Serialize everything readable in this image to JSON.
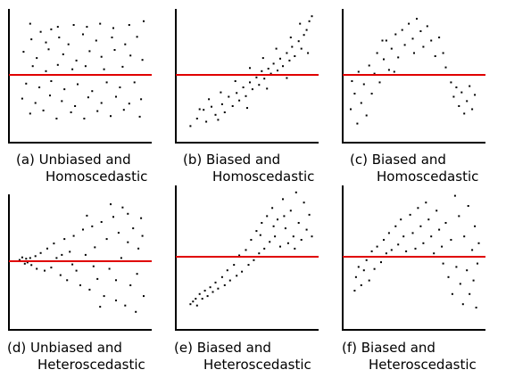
{
  "colors": {
    "dots": "#000000",
    "axes": "#000000",
    "reference_line": "#e00000",
    "background": "#ffffff"
  },
  "chart_data": [
    {
      "type": "scatter",
      "caption_line1": "(a) Unbiased and",
      "caption_line2": "Homoscedastic",
      "xlim": [
        0,
        1
      ],
      "ylim": [
        -1,
        1
      ],
      "reference_line_y": 0,
      "axes": "left-bottom",
      "grid": false,
      "ticks": false,
      "points": [
        [
          0.12,
          0.82
        ],
        [
          0.2,
          0.69
        ],
        [
          0.28,
          0.73
        ],
        [
          0.33,
          0.77
        ],
        [
          0.45,
          0.8
        ],
        [
          0.55,
          0.77
        ],
        [
          0.65,
          0.82
        ],
        [
          0.75,
          0.75
        ],
        [
          0.87,
          0.8
        ],
        [
          0.98,
          0.86
        ],
        [
          0.13,
          0.57
        ],
        [
          0.24,
          0.52
        ],
        [
          0.34,
          0.6
        ],
        [
          0.41,
          0.49
        ],
        [
          0.52,
          0.65
        ],
        [
          0.62,
          0.55
        ],
        [
          0.74,
          0.6
        ],
        [
          0.84,
          0.49
        ],
        [
          0.93,
          0.61
        ],
        [
          0.07,
          0.37
        ],
        [
          0.17,
          0.27
        ],
        [
          0.26,
          0.41
        ],
        [
          0.37,
          0.33
        ],
        [
          0.47,
          0.23
        ],
        [
          0.57,
          0.38
        ],
        [
          0.66,
          0.29
        ],
        [
          0.76,
          0.4
        ],
        [
          0.88,
          0.31
        ],
        [
          0.97,
          0.24
        ],
        [
          0.14,
          0.14
        ],
        [
          0.24,
          0.06
        ],
        [
          0.33,
          0.16
        ],
        [
          0.44,
          0.09
        ],
        [
          0.54,
          0.14
        ],
        [
          0.68,
          0.09
        ],
        [
          0.82,
          0.13
        ],
        [
          0.09,
          -0.14
        ],
        [
          0.19,
          -0.2
        ],
        [
          0.28,
          -0.1
        ],
        [
          0.38,
          -0.23
        ],
        [
          0.48,
          -0.15
        ],
        [
          0.59,
          -0.26
        ],
        [
          0.7,
          -0.12
        ],
        [
          0.8,
          -0.2
        ],
        [
          0.91,
          -0.12
        ],
        [
          0.06,
          -0.38
        ],
        [
          0.16,
          -0.45
        ],
        [
          0.27,
          -0.33
        ],
        [
          0.36,
          -0.42
        ],
        [
          0.46,
          -0.5
        ],
        [
          0.56,
          -0.36
        ],
        [
          0.66,
          -0.45
        ],
        [
          0.77,
          -0.35
        ],
        [
          0.87,
          -0.46
        ],
        [
          0.96,
          -0.39
        ],
        [
          0.12,
          -0.62
        ],
        [
          0.22,
          -0.57
        ],
        [
          0.32,
          -0.7
        ],
        [
          0.43,
          -0.6
        ],
        [
          0.53,
          -0.7
        ],
        [
          0.63,
          -0.58
        ],
        [
          0.73,
          -0.66
        ],
        [
          0.83,
          -0.56
        ],
        [
          0.95,
          -0.67
        ]
      ]
    },
    {
      "type": "scatter",
      "caption_line1": "(b) Biased and",
      "caption_line2": "Homoscedastic",
      "xlim": [
        0,
        1
      ],
      "ylim": [
        -1,
        1
      ],
      "reference_line_y": 0,
      "axes": "left-bottom",
      "grid": false,
      "ticks": false,
      "points": [
        [
          0.07,
          -0.82
        ],
        [
          0.12,
          -0.7
        ],
        [
          0.19,
          -0.75
        ],
        [
          0.17,
          -0.56
        ],
        [
          0.23,
          -0.51
        ],
        [
          0.26,
          -0.64
        ],
        [
          0.31,
          -0.47
        ],
        [
          0.33,
          -0.6
        ],
        [
          0.36,
          -0.35
        ],
        [
          0.39,
          -0.5
        ],
        [
          0.42,
          -0.29
        ],
        [
          0.44,
          -0.41
        ],
        [
          0.47,
          -0.2
        ],
        [
          0.49,
          -0.34
        ],
        [
          0.52,
          -0.12
        ],
        [
          0.54,
          -0.23
        ],
        [
          0.57,
          -0.04
        ],
        [
          0.59,
          -0.16
        ],
        [
          0.61,
          0.06
        ],
        [
          0.63,
          -0.06
        ],
        [
          0.66,
          0.1
        ],
        [
          0.68,
          0.02
        ],
        [
          0.7,
          0.18
        ],
        [
          0.73,
          0.07
        ],
        [
          0.75,
          0.26
        ],
        [
          0.77,
          0.14
        ],
        [
          0.8,
          0.35
        ],
        [
          0.82,
          0.23
        ],
        [
          0.84,
          0.45
        ],
        [
          0.86,
          0.3
        ],
        [
          0.89,
          0.54
        ],
        [
          0.91,
          0.42
        ],
        [
          0.93,
          0.64
        ],
        [
          0.95,
          0.72
        ],
        [
          0.97,
          0.86
        ],
        [
          0.99,
          0.94
        ],
        [
          0.9,
          0.82
        ],
        [
          0.83,
          0.6
        ],
        [
          0.72,
          0.42
        ],
        [
          0.62,
          0.27
        ],
        [
          0.52,
          0.11
        ],
        [
          0.41,
          -0.1
        ],
        [
          0.3,
          -0.28
        ],
        [
          0.21,
          -0.39
        ],
        [
          0.14,
          -0.55
        ],
        [
          0.28,
          -0.72
        ],
        [
          0.5,
          -0.53
        ],
        [
          0.65,
          -0.22
        ],
        [
          0.8,
          -0.05
        ],
        [
          0.96,
          0.35
        ]
      ]
    },
    {
      "type": "scatter",
      "caption_line1": "(c) Biased and",
      "caption_line2": "Homoscedastic",
      "xlim": [
        0,
        1
      ],
      "ylim": [
        -1,
        1
      ],
      "reference_line_y": 0,
      "axes": "left-bottom",
      "grid": false,
      "ticks": false,
      "points": [
        [
          0.02,
          -0.55
        ],
        [
          0.05,
          -0.3
        ],
        [
          0.07,
          -0.78
        ],
        [
          0.1,
          -0.45
        ],
        [
          0.12,
          -0.15
        ],
        [
          0.14,
          -0.65
        ],
        [
          0.16,
          0.15
        ],
        [
          0.18,
          -0.3
        ],
        [
          0.2,
          0.02
        ],
        [
          0.22,
          0.35
        ],
        [
          0.24,
          -0.12
        ],
        [
          0.27,
          0.25
        ],
        [
          0.29,
          0.55
        ],
        [
          0.31,
          0.08
        ],
        [
          0.33,
          0.42
        ],
        [
          0.36,
          0.65
        ],
        [
          0.38,
          0.28
        ],
        [
          0.41,
          0.72
        ],
        [
          0.43,
          0.48
        ],
        [
          0.46,
          0.82
        ],
        [
          0.49,
          0.58
        ],
        [
          0.52,
          0.9
        ],
        [
          0.55,
          0.7
        ],
        [
          0.57,
          0.45
        ],
        [
          0.6,
          0.78
        ],
        [
          0.63,
          0.55
        ],
        [
          0.66,
          0.3
        ],
        [
          0.69,
          0.6
        ],
        [
          0.72,
          0.35
        ],
        [
          0.74,
          0.12
        ],
        [
          0.03,
          -0.1
        ],
        [
          0.08,
          0.05
        ],
        [
          0.26,
          0.55
        ],
        [
          0.35,
          0.05
        ],
        [
          0.5,
          0.35
        ],
        [
          0.78,
          -0.12
        ],
        [
          0.8,
          -0.35
        ],
        [
          0.82,
          -0.2
        ],
        [
          0.84,
          -0.5
        ],
        [
          0.86,
          -0.28
        ],
        [
          0.88,
          -0.62
        ],
        [
          0.9,
          -0.42
        ],
        [
          0.92,
          -0.18
        ],
        [
          0.94,
          -0.55
        ],
        [
          0.96,
          -0.32
        ]
      ]
    },
    {
      "type": "scatter",
      "caption_line1": "(d) Unbiased and",
      "caption_line2": "Heteroscedastic",
      "xlim": [
        0,
        1
      ],
      "ylim": [
        -1,
        1
      ],
      "reference_line_y": 0,
      "axes": "left-bottom",
      "grid": false,
      "ticks": false,
      "points": [
        [
          0.04,
          0.02
        ],
        [
          0.06,
          0.06
        ],
        [
          0.08,
          -0.04
        ],
        [
          0.09,
          0.04
        ],
        [
          0.1,
          -0.02
        ],
        [
          0.12,
          0.05
        ],
        [
          0.13,
          -0.06
        ],
        [
          0.16,
          0.08
        ],
        [
          0.17,
          -0.12
        ],
        [
          0.2,
          0.13
        ],
        [
          0.23,
          -0.15
        ],
        [
          0.25,
          0.2
        ],
        [
          0.28,
          -0.1
        ],
        [
          0.3,
          0.28
        ],
        [
          0.32,
          0.05
        ],
        [
          0.35,
          -0.22
        ],
        [
          0.38,
          0.35
        ],
        [
          0.4,
          -0.3
        ],
        [
          0.42,
          0.15
        ],
        [
          0.45,
          0.4
        ],
        [
          0.47,
          -0.15
        ],
        [
          0.5,
          -0.38
        ],
        [
          0.52,
          0.5
        ],
        [
          0.54,
          0.1
        ],
        [
          0.57,
          -0.45
        ],
        [
          0.59,
          0.55
        ],
        [
          0.61,
          0.22
        ],
        [
          0.63,
          -0.28
        ],
        [
          0.66,
          0.62
        ],
        [
          0.68,
          -0.55
        ],
        [
          0.7,
          0.35
        ],
        [
          0.72,
          -0.12
        ],
        [
          0.75,
          0.7
        ],
        [
          0.77,
          -0.62
        ],
        [
          0.79,
          0.45
        ],
        [
          0.81,
          0.05
        ],
        [
          0.84,
          -0.7
        ],
        [
          0.86,
          0.75
        ],
        [
          0.88,
          -0.38
        ],
        [
          0.9,
          0.52
        ],
        [
          0.92,
          -0.8
        ],
        [
          0.94,
          0.2
        ],
        [
          0.96,
          0.68
        ],
        [
          0.98,
          -0.55
        ],
        [
          0.55,
          0.72
        ],
        [
          0.65,
          -0.72
        ],
        [
          0.73,
          0.9
        ],
        [
          0.82,
          0.85
        ],
        [
          0.93,
          -0.2
        ],
        [
          0.97,
          0.4
        ],
        [
          0.36,
          0.1
        ],
        [
          0.44,
          -0.05
        ],
        [
          0.6,
          -0.08
        ],
        [
          0.77,
          -0.3
        ],
        [
          0.86,
          0.3
        ]
      ]
    },
    {
      "type": "scatter",
      "caption_line1": "(e) Biased and",
      "caption_line2": "Heteroscedastic",
      "xlim": [
        0,
        1
      ],
      "ylim": [
        -1,
        1
      ],
      "reference_line_y": 0,
      "axes": "left-bottom",
      "grid": false,
      "ticks": false,
      "points": [
        [
          0.07,
          -0.7
        ],
        [
          0.09,
          -0.66
        ],
        [
          0.11,
          -0.62
        ],
        [
          0.12,
          -0.72
        ],
        [
          0.14,
          -0.55
        ],
        [
          0.16,
          -0.62
        ],
        [
          0.18,
          -0.5
        ],
        [
          0.2,
          -0.58
        ],
        [
          0.22,
          -0.45
        ],
        [
          0.24,
          -0.52
        ],
        [
          0.26,
          -0.38
        ],
        [
          0.28,
          -0.47
        ],
        [
          0.31,
          -0.3
        ],
        [
          0.33,
          -0.42
        ],
        [
          0.35,
          -0.2
        ],
        [
          0.37,
          -0.35
        ],
        [
          0.4,
          -0.12
        ],
        [
          0.42,
          -0.28
        ],
        [
          0.44,
          0.02
        ],
        [
          0.46,
          -0.22
        ],
        [
          0.49,
          0.1
        ],
        [
          0.51,
          -0.12
        ],
        [
          0.53,
          0.25
        ],
        [
          0.55,
          -0.05
        ],
        [
          0.57,
          0.38
        ],
        [
          0.59,
          0.05
        ],
        [
          0.61,
          0.5
        ],
        [
          0.63,
          0.12
        ],
        [
          0.65,
          0.6
        ],
        [
          0.67,
          0.22
        ],
        [
          0.69,
          0.72
        ],
        [
          0.71,
          0.3
        ],
        [
          0.73,
          0.55
        ],
        [
          0.75,
          0.15
        ],
        [
          0.77,
          0.85
        ],
        [
          0.79,
          0.42
        ],
        [
          0.81,
          0.2
        ],
        [
          0.83,
          0.68
        ],
        [
          0.85,
          0.3
        ],
        [
          0.87,
          0.95
        ],
        [
          0.89,
          0.5
        ],
        [
          0.91,
          0.25
        ],
        [
          0.93,
          0.8
        ],
        [
          0.95,
          0.4
        ],
        [
          0.97,
          0.62
        ],
        [
          0.99,
          0.3
        ],
        [
          0.6,
          0.32
        ],
        [
          0.7,
          0.45
        ],
        [
          0.78,
          0.6
        ],
        [
          0.86,
          0.12
        ]
      ]
    },
    {
      "type": "scatter",
      "caption_line1": "(f) Biased and",
      "caption_line2": "Heteroscedastic",
      "xlim": [
        0,
        1
      ],
      "ylim": [
        -1,
        1
      ],
      "reference_line_y": 0,
      "axes": "left-bottom",
      "grid": false,
      "ticks": false,
      "points": [
        [
          0.05,
          -0.5
        ],
        [
          0.06,
          -0.3
        ],
        [
          0.08,
          -0.15
        ],
        [
          0.1,
          -0.42
        ],
        [
          0.12,
          -0.2
        ],
        [
          0.14,
          -0.05
        ],
        [
          0.16,
          -0.35
        ],
        [
          0.18,
          0.08
        ],
        [
          0.2,
          -0.18
        ],
        [
          0.22,
          0.15
        ],
        [
          0.25,
          -0.08
        ],
        [
          0.27,
          0.25
        ],
        [
          0.29,
          0.05
        ],
        [
          0.31,
          0.35
        ],
        [
          0.33,
          0.1
        ],
        [
          0.36,
          0.45
        ],
        [
          0.38,
          0.18
        ],
        [
          0.4,
          0.55
        ],
        [
          0.42,
          0.3
        ],
        [
          0.44,
          0.08
        ],
        [
          0.47,
          0.62
        ],
        [
          0.49,
          0.35
        ],
        [
          0.51,
          0.12
        ],
        [
          0.53,
          0.72
        ],
        [
          0.55,
          0.45
        ],
        [
          0.57,
          0.2
        ],
        [
          0.59,
          0.8
        ],
        [
          0.61,
          0.55
        ],
        [
          0.63,
          0.3
        ],
        [
          0.65,
          0.05
        ],
        [
          0.67,
          0.68
        ],
        [
          0.69,
          0.4
        ],
        [
          0.71,
          0.15
        ],
        [
          0.72,
          -0.1
        ],
        [
          0.74,
          0.5
        ],
        [
          0.76,
          -0.3
        ],
        [
          0.78,
          0.25
        ],
        [
          0.79,
          -0.55
        ],
        [
          0.81,
          0.9
        ],
        [
          0.82,
          -0.15
        ],
        [
          0.84,
          0.6
        ],
        [
          0.85,
          -0.4
        ],
        [
          0.87,
          -0.7
        ],
        [
          0.88,
          0.3
        ],
        [
          0.9,
          -0.2
        ],
        [
          0.91,
          0.75
        ],
        [
          0.92,
          -0.55
        ],
        [
          0.94,
          0.1
        ],
        [
          0.95,
          -0.35
        ],
        [
          0.96,
          0.45
        ],
        [
          0.97,
          -0.75
        ],
        [
          0.98,
          -0.1
        ],
        [
          0.99,
          0.2
        ]
      ]
    }
  ]
}
